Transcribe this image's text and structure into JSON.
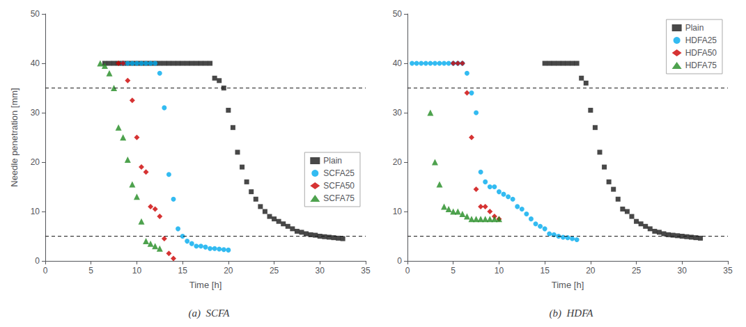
{
  "chart_data": [
    {
      "type": "scatter",
      "subtitle": "(a)  SCFA",
      "xlabel": "Time [h]",
      "ylabel": "Needle penetration [mm]",
      "xlim": [
        0,
        35
      ],
      "ylim": [
        0,
        50
      ],
      "xticks": [
        0,
        5,
        10,
        15,
        20,
        25,
        30,
        35
      ],
      "yticks": [
        0,
        10,
        20,
        30,
        40,
        50
      ],
      "grid": false,
      "legend": "lower right",
      "hlines": [
        35,
        5
      ],
      "series": [
        {
          "name": "Plain",
          "color": "#1a1a1a",
          "marker": "square",
          "x": [
            6.5,
            7.0,
            7.5,
            8.0,
            8.5,
            9.0,
            9.5,
            10.0,
            10.5,
            11.0,
            11.5,
            12.0,
            12.5,
            13.0,
            13.5,
            14.0,
            14.5,
            15.0,
            15.5,
            16.0,
            16.5,
            17.0,
            17.5,
            18.0,
            18.5,
            19.0,
            19.5,
            20.0,
            20.5,
            21.0,
            21.5,
            22.0,
            22.5,
            23.0,
            23.5,
            24.0,
            24.5,
            25.0,
            25.5,
            26.0,
            26.5,
            27.0,
            27.5,
            28.0,
            28.5,
            29.0,
            29.5,
            30.0,
            30.5,
            31.0,
            31.5,
            32.0,
            32.5
          ],
          "values": [
            40.0,
            40.0,
            40.0,
            40.0,
            40.0,
            40.0,
            40.0,
            40.0,
            40.0,
            40.0,
            40.0,
            40.0,
            40.0,
            40.0,
            40.0,
            40.0,
            40.0,
            40.0,
            40.0,
            40.0,
            40.0,
            40.0,
            40.0,
            40.0,
            37.0,
            36.5,
            35.0,
            30.5,
            27.0,
            22.0,
            19.0,
            16.0,
            14.0,
            12.5,
            11.0,
            10.0,
            9.0,
            8.5,
            8.0,
            7.5,
            7.0,
            6.5,
            6.0,
            5.8,
            5.5,
            5.3,
            5.2,
            5.0,
            4.9,
            4.8,
            4.7,
            4.6,
            4.5
          ]
        },
        {
          "name": "SCFA25",
          "color": "#00AAEE",
          "marker": "circle",
          "x": [
            8.5,
            9.0,
            9.5,
            10.0,
            10.5,
            11.0,
            11.5,
            12.0,
            12.5,
            13.0,
            13.5,
            14.0,
            14.5,
            15.0,
            15.5,
            16.0,
            16.5,
            17.0,
            17.5,
            18.0,
            18.5,
            19.0,
            19.5,
            20.0
          ],
          "values": [
            40.0,
            40.0,
            40.0,
            40.0,
            40.0,
            40.0,
            40.0,
            40.0,
            38.0,
            31.0,
            17.5,
            12.5,
            6.5,
            5.0,
            4.0,
            3.5,
            3.0,
            3.0,
            2.8,
            2.5,
            2.5,
            2.4,
            2.3,
            2.2
          ]
        },
        {
          "name": "SCFA50",
          "color": "#CC0000",
          "marker": "diamond",
          "x": [
            8.0,
            8.5,
            9.0,
            9.5,
            10.0,
            10.5,
            11.0,
            11.5,
            12.0,
            12.5,
            13.0,
            13.5,
            14.0
          ],
          "values": [
            40.0,
            40.0,
            36.5,
            32.5,
            25.0,
            19.0,
            18.0,
            11.0,
            10.5,
            9.0,
            4.5,
            1.5,
            0.5
          ]
        },
        {
          "name": "SCFA75",
          "color": "#228B22",
          "marker": "triangle",
          "x": [
            6.0,
            6.5,
            7.0,
            7.5,
            8.0,
            8.5,
            9.0,
            9.5,
            10.0,
            10.5,
            11.0,
            11.5,
            12.0,
            12.5
          ],
          "values": [
            40.0,
            39.5,
            38.0,
            35.0,
            27.0,
            25.0,
            20.5,
            15.5,
            13.0,
            8.0,
            4.0,
            3.5,
            3.0,
            2.5
          ]
        }
      ]
    },
    {
      "type": "scatter",
      "subtitle": "(b)  HDFA",
      "xlabel": "Time [h]",
      "xlim": [
        0,
        35
      ],
      "ylim": [
        0,
        50
      ],
      "xticks": [
        0,
        5,
        10,
        15,
        20,
        25,
        30,
        35
      ],
      "yticks": [
        0,
        10,
        20,
        30,
        40,
        50
      ],
      "grid": false,
      "legend": "upper right",
      "hlines": [
        35,
        5
      ],
      "series": [
        {
          "name": "Plain",
          "color": "#1a1a1a",
          "marker": "square",
          "x": [
            15.0,
            15.5,
            16.0,
            16.5,
            17.0,
            17.5,
            18.0,
            18.5,
            19.0,
            19.5,
            20.0,
            20.5,
            21.0,
            21.5,
            22.0,
            22.5,
            23.0,
            23.5,
            24.0,
            24.5,
            25.0,
            25.5,
            26.0,
            26.5,
            27.0,
            27.5,
            28.0,
            28.5,
            29.0,
            29.5,
            30.0,
            30.5,
            31.0,
            31.5,
            32.0
          ],
          "values": [
            40.0,
            40.0,
            40.0,
            40.0,
            40.0,
            40.0,
            40.0,
            40.0,
            37.0,
            36.0,
            30.5,
            27.0,
            22.0,
            19.0,
            16.0,
            14.5,
            12.5,
            10.5,
            10.0,
            9.0,
            8.0,
            7.5,
            7.0,
            6.5,
            6.0,
            5.8,
            5.5,
            5.3,
            5.2,
            5.1,
            5.0,
            4.9,
            4.8,
            4.7,
            4.6
          ]
        },
        {
          "name": "HDFA25",
          "color": "#00AAEE",
          "marker": "circle",
          "x": [
            0.5,
            1.0,
            1.5,
            2.0,
            2.5,
            3.0,
            3.5,
            4.0,
            4.5,
            5.0,
            5.5,
            6.0,
            6.5,
            7.0,
            7.5,
            8.0,
            8.5,
            9.0,
            9.5,
            10.0,
            10.5,
            11.0,
            11.5,
            12.0,
            12.5,
            13.0,
            13.5,
            14.0,
            14.5,
            15.0,
            15.5,
            16.0,
            16.5,
            17.0,
            17.5,
            18.0,
            18.5
          ],
          "values": [
            40.0,
            40.0,
            40.0,
            40.0,
            40.0,
            40.0,
            40.0,
            40.0,
            40.0,
            40.0,
            40.0,
            40.0,
            38.0,
            34.0,
            30.0,
            18.0,
            16.0,
            15.0,
            15.0,
            14.0,
            13.5,
            13.0,
            12.5,
            11.0,
            10.5,
            9.5,
            8.5,
            7.5,
            7.0,
            6.5,
            5.5,
            5.3,
            5.0,
            4.8,
            4.7,
            4.5,
            4.3
          ]
        },
        {
          "name": "HDFA50",
          "color": "#CC0000",
          "marker": "diamond",
          "x": [
            5.0,
            5.5,
            6.0,
            6.5,
            7.0,
            7.5,
            8.0,
            8.5,
            9.0,
            9.5,
            10.0
          ],
          "values": [
            40.0,
            40.0,
            40.0,
            34.0,
            25.0,
            14.5,
            11.0,
            11.0,
            10.0,
            9.0,
            8.5
          ]
        },
        {
          "name": "HDFA75",
          "color": "#228B22",
          "marker": "triangle",
          "x": [
            2.5,
            3.0,
            3.5,
            4.0,
            4.5,
            5.0,
            5.5,
            6.0,
            6.5,
            7.0,
            7.5,
            8.0,
            8.5,
            9.0,
            9.5,
            10.0
          ],
          "values": [
            30.0,
            20.0,
            15.5,
            11.0,
            10.5,
            10.0,
            10.0,
            9.5,
            9.0,
            8.5,
            8.5,
            8.5,
            8.5,
            8.5,
            8.5,
            8.5
          ]
        }
      ]
    }
  ]
}
